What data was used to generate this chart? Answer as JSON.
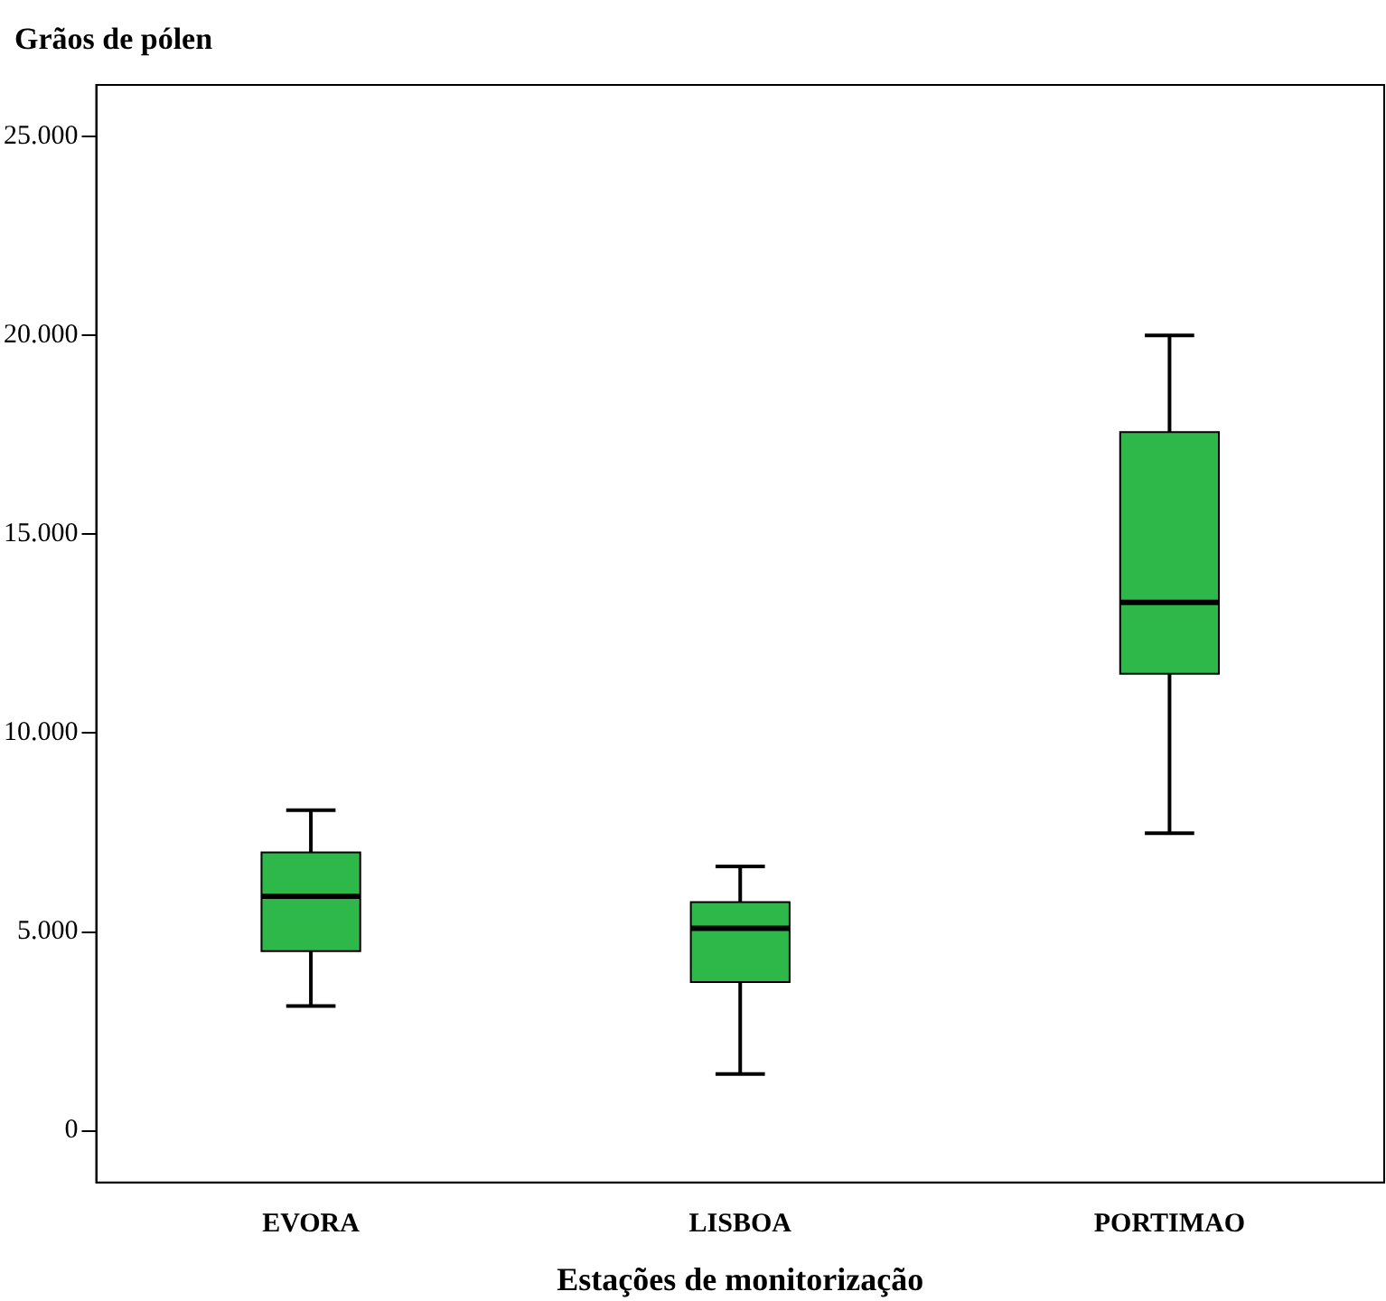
{
  "chart_data": {
    "type": "box",
    "ylabel": "Grãos de pólen",
    "xlabel": "Estações de monitorização",
    "categories": [
      "EVORA",
      "LISBOA",
      "PORTIMAO"
    ],
    "color": "#2eb84a",
    "boxes": [
      {
        "low": 3140,
        "q1": 4520,
        "median": 5900,
        "q3": 7000,
        "high": 8060
      },
      {
        "low": 1430,
        "q1": 3740,
        "median": 5090,
        "q3": 5750,
        "high": 6650
      },
      {
        "low": 7480,
        "q1": 11490,
        "median": 13290,
        "q3": 17570,
        "high": 20000
      }
    ],
    "ylim": [
      -1300,
      26300
    ],
    "yticks": [
      {
        "value": 0,
        "label": "0"
      },
      {
        "value": 5000,
        "label": "5.000"
      },
      {
        "value": 10000,
        "label": "10.000"
      },
      {
        "value": 15000,
        "label": "15.000"
      },
      {
        "value": 20000,
        "label": "20.000"
      },
      {
        "value": 25000,
        "label": "25.000"
      }
    ],
    "grid": false,
    "legend": false
  }
}
